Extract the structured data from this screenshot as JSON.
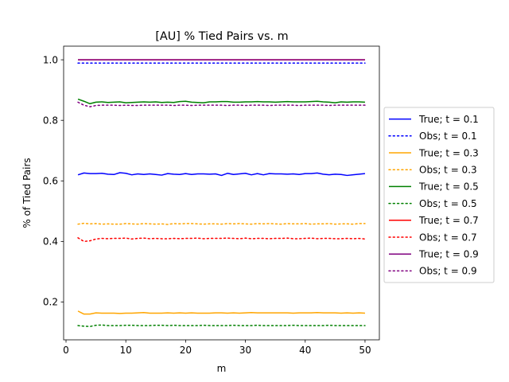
{
  "chart_data": {
    "type": "line",
    "title": "[AU] % Tied Pairs vs. m",
    "xlabel": "m",
    "ylabel": "% of Tied Pairs",
    "xlim": [
      -0.4,
      52.4
    ],
    "ylim": [
      0.075,
      1.045
    ],
    "xticks": [
      0,
      10,
      20,
      30,
      40,
      50
    ],
    "yticks": [
      0.2,
      0.4,
      0.6,
      0.8,
      1.0
    ],
    "xtick_labels": [
      "0",
      "10",
      "20",
      "30",
      "40",
      "50"
    ],
    "ytick_labels": [
      "0.2",
      "0.4",
      "0.6",
      "0.8",
      "1.0"
    ],
    "x": [
      2,
      3,
      4,
      5,
      6,
      7,
      8,
      9,
      10,
      11,
      12,
      13,
      14,
      15,
      16,
      17,
      18,
      19,
      20,
      21,
      22,
      23,
      24,
      25,
      26,
      27,
      28,
      29,
      30,
      31,
      32,
      33,
      34,
      35,
      36,
      37,
      38,
      39,
      40,
      41,
      42,
      43,
      44,
      45,
      46,
      47,
      48,
      49,
      50
    ],
    "legend_position": "center-right",
    "series": [
      {
        "name": "True; t = 0.1",
        "color": "#0000ff",
        "dash": "solid",
        "values": [
          0.62,
          0.626,
          0.624,
          0.624,
          0.625,
          0.622,
          0.621,
          0.627,
          0.625,
          0.62,
          0.623,
          0.621,
          0.623,
          0.621,
          0.619,
          0.624,
          0.622,
          0.621,
          0.624,
          0.621,
          0.623,
          0.623,
          0.622,
          0.623,
          0.618,
          0.625,
          0.621,
          0.623,
          0.625,
          0.62,
          0.624,
          0.62,
          0.624,
          0.623,
          0.623,
          0.622,
          0.623,
          0.621,
          0.624,
          0.624,
          0.626,
          0.622,
          0.62,
          0.622,
          0.621,
          0.618,
          0.62,
          0.622,
          0.624
        ]
      },
      {
        "name": "Obs; t = 0.1",
        "color": "#0000ff",
        "dash": "dotted",
        "values": [
          0.989,
          0.989,
          0.989,
          0.989,
          0.989,
          0.989,
          0.989,
          0.989,
          0.989,
          0.989,
          0.989,
          0.989,
          0.989,
          0.989,
          0.989,
          0.989,
          0.989,
          0.989,
          0.989,
          0.989,
          0.989,
          0.989,
          0.989,
          0.989,
          0.989,
          0.989,
          0.989,
          0.989,
          0.989,
          0.989,
          0.989,
          0.989,
          0.989,
          0.989,
          0.989,
          0.989,
          0.989,
          0.989,
          0.989,
          0.989,
          0.989,
          0.989,
          0.989,
          0.989,
          0.989,
          0.989,
          0.989,
          0.989,
          0.989
        ]
      },
      {
        "name": "True; t = 0.3",
        "color": "#ffa500",
        "dash": "solid",
        "values": [
          0.17,
          0.16,
          0.16,
          0.164,
          0.163,
          0.163,
          0.163,
          0.162,
          0.163,
          0.163,
          0.164,
          0.165,
          0.163,
          0.163,
          0.163,
          0.164,
          0.163,
          0.164,
          0.163,
          0.164,
          0.163,
          0.163,
          0.163,
          0.164,
          0.164,
          0.163,
          0.164,
          0.163,
          0.164,
          0.165,
          0.164,
          0.164,
          0.164,
          0.164,
          0.164,
          0.164,
          0.163,
          0.164,
          0.164,
          0.164,
          0.165,
          0.164,
          0.164,
          0.164,
          0.163,
          0.164,
          0.163,
          0.164,
          0.163
        ]
      },
      {
        "name": "Obs; t = 0.3",
        "color": "#ffa500",
        "dash": "dotted",
        "values": [
          0.457,
          0.46,
          0.458,
          0.459,
          0.457,
          0.458,
          0.457,
          0.457,
          0.459,
          0.458,
          0.457,
          0.459,
          0.458,
          0.457,
          0.458,
          0.456,
          0.459,
          0.458,
          0.459,
          0.459,
          0.458,
          0.457,
          0.458,
          0.458,
          0.457,
          0.459,
          0.458,
          0.459,
          0.458,
          0.457,
          0.459,
          0.458,
          0.459,
          0.458,
          0.457,
          0.459,
          0.458,
          0.458,
          0.459,
          0.457,
          0.458,
          0.458,
          0.459,
          0.457,
          0.458,
          0.458,
          0.457,
          0.459,
          0.459
        ]
      },
      {
        "name": "True; t = 0.5",
        "color": "#008000",
        "dash": "solid",
        "values": [
          0.87,
          0.863,
          0.855,
          0.86,
          0.861,
          0.859,
          0.86,
          0.861,
          0.858,
          0.859,
          0.86,
          0.861,
          0.86,
          0.861,
          0.859,
          0.86,
          0.859,
          0.862,
          0.863,
          0.86,
          0.859,
          0.858,
          0.861,
          0.861,
          0.862,
          0.862,
          0.86,
          0.86,
          0.861,
          0.861,
          0.862,
          0.861,
          0.861,
          0.86,
          0.861,
          0.862,
          0.861,
          0.861,
          0.861,
          0.862,
          0.863,
          0.861,
          0.86,
          0.858,
          0.861,
          0.86,
          0.861,
          0.861,
          0.86
        ]
      },
      {
        "name": "Obs; t = 0.5",
        "color": "#008000",
        "dash": "dotted",
        "values": [
          0.122,
          0.12,
          0.119,
          0.123,
          0.124,
          0.122,
          0.122,
          0.122,
          0.123,
          0.123,
          0.122,
          0.122,
          0.122,
          0.123,
          0.123,
          0.122,
          0.123,
          0.122,
          0.122,
          0.122,
          0.122,
          0.123,
          0.122,
          0.122,
          0.122,
          0.122,
          0.123,
          0.122,
          0.122,
          0.122,
          0.123,
          0.122,
          0.122,
          0.122,
          0.122,
          0.122,
          0.123,
          0.122,
          0.122,
          0.122,
          0.122,
          0.122,
          0.123,
          0.122,
          0.122,
          0.122,
          0.122,
          0.122,
          0.122
        ]
      },
      {
        "name": "True; t = 0.7",
        "color": "#ff0000",
        "dash": "solid",
        "values": [
          1.0,
          1.0,
          1.0,
          1.0,
          1.0,
          1.0,
          1.0,
          1.0,
          1.0,
          1.0,
          1.0,
          1.0,
          1.0,
          1.0,
          1.0,
          1.0,
          1.0,
          1.0,
          1.0,
          1.0,
          1.0,
          1.0,
          1.0,
          1.0,
          1.0,
          1.0,
          1.0,
          1.0,
          1.0,
          1.0,
          1.0,
          1.0,
          1.0,
          1.0,
          1.0,
          1.0,
          1.0,
          1.0,
          1.0,
          1.0,
          1.0,
          1.0,
          1.0,
          1.0,
          1.0,
          1.0,
          1.0,
          1.0,
          1.0
        ]
      },
      {
        "name": "Obs; t = 0.7",
        "color": "#ff0000",
        "dash": "dotted",
        "values": [
          0.412,
          0.4,
          0.402,
          0.408,
          0.41,
          0.409,
          0.41,
          0.41,
          0.411,
          0.408,
          0.41,
          0.411,
          0.409,
          0.41,
          0.409,
          0.409,
          0.41,
          0.409,
          0.41,
          0.41,
          0.411,
          0.409,
          0.41,
          0.41,
          0.41,
          0.411,
          0.41,
          0.409,
          0.411,
          0.409,
          0.41,
          0.41,
          0.409,
          0.41,
          0.41,
          0.411,
          0.409,
          0.409,
          0.41,
          0.411,
          0.409,
          0.41,
          0.41,
          0.409,
          0.409,
          0.41,
          0.409,
          0.41,
          0.408
        ]
      },
      {
        "name": "True; t = 0.9",
        "color": "#800080",
        "dash": "solid",
        "values": [
          1.0,
          1.0,
          1.0,
          1.0,
          1.0,
          1.0,
          1.0,
          1.0,
          1.0,
          1.0,
          1.0,
          1.0,
          1.0,
          1.0,
          1.0,
          1.0,
          1.0,
          1.0,
          1.0,
          1.0,
          1.0,
          1.0,
          1.0,
          1.0,
          1.0,
          1.0,
          1.0,
          1.0,
          1.0,
          1.0,
          1.0,
          1.0,
          1.0,
          1.0,
          1.0,
          1.0,
          1.0,
          1.0,
          1.0,
          1.0,
          1.0,
          1.0,
          1.0,
          1.0,
          1.0,
          1.0,
          1.0,
          1.0,
          1.0
        ]
      },
      {
        "name": "Obs; t = 0.9",
        "color": "#800080",
        "dash": "dotted",
        "values": [
          0.86,
          0.85,
          0.845,
          0.849,
          0.85,
          0.85,
          0.85,
          0.849,
          0.85,
          0.849,
          0.849,
          0.85,
          0.85,
          0.85,
          0.85,
          0.85,
          0.849,
          0.85,
          0.85,
          0.849,
          0.85,
          0.85,
          0.85,
          0.85,
          0.85,
          0.849,
          0.85,
          0.85,
          0.849,
          0.85,
          0.85,
          0.85,
          0.849,
          0.85,
          0.85,
          0.85,
          0.85,
          0.849,
          0.85,
          0.85,
          0.85,
          0.85,
          0.849,
          0.85,
          0.85,
          0.85,
          0.85,
          0.85,
          0.85
        ]
      }
    ]
  }
}
